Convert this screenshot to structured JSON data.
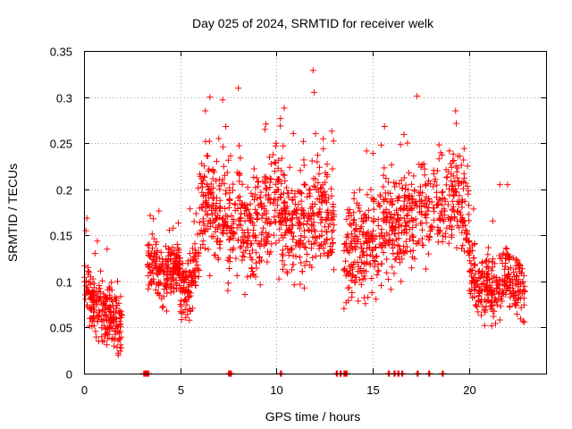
{
  "chart_data": {
    "type": "scatter",
    "title": "Day 025 of 2024, SRMTID for receiver welk",
    "xlabel": "GPS time / hours",
    "ylabel": "SRMTID / TECUs",
    "xlim": [
      0,
      24
    ],
    "ylim": [
      0,
      0.35
    ],
    "x_ticks": [
      0,
      5,
      10,
      15,
      20
    ],
    "y_ticks": [
      0,
      0.05,
      0.1,
      0.15,
      0.2,
      0.25,
      0.3,
      0.35
    ],
    "x_tick_labels": [
      "0",
      "5",
      "10",
      "15",
      "20"
    ],
    "y_tick_labels": [
      "0",
      "0.05",
      "0.1",
      "0.15",
      "0.2",
      "0.25",
      "0.3",
      "0.35"
    ],
    "grid": true,
    "marker": "+",
    "color": "#ff0000",
    "segments": [
      {
        "name": "segment-1",
        "x_start": 0.0,
        "x_end": 2.0,
        "n": 230,
        "trend": [
          [
            0.0,
            0.1
          ],
          [
            0.5,
            0.075
          ],
          [
            1.0,
            0.06
          ],
          [
            1.5,
            0.065
          ],
          [
            2.0,
            0.045
          ]
        ],
        "spread": 0.028
      },
      {
        "name": "segment-2",
        "x_start": 3.3,
        "x_end": 5.0,
        "n": 200,
        "trend": [
          [
            3.3,
            0.125
          ],
          [
            4.0,
            0.11
          ],
          [
            4.6,
            0.11
          ],
          [
            5.0,
            0.12
          ]
        ],
        "spread": 0.028
      },
      {
        "name": "segment-3",
        "x_start": 5.0,
        "x_end": 6.0,
        "n": 110,
        "trend": [
          [
            5.0,
            0.085
          ],
          [
            5.5,
            0.095
          ],
          [
            6.0,
            0.125
          ]
        ],
        "spread": 0.03
      },
      {
        "name": "segment-4",
        "x_start": 6.0,
        "x_end": 13.0,
        "n": 720,
        "trend": [
          [
            6.0,
            0.19
          ],
          [
            7.0,
            0.17
          ],
          [
            8.0,
            0.165
          ],
          [
            9.0,
            0.155
          ],
          [
            10.0,
            0.18
          ],
          [
            11.0,
            0.155
          ],
          [
            12.0,
            0.18
          ],
          [
            13.0,
            0.16
          ]
        ],
        "spread": 0.05
      },
      {
        "name": "segment-5",
        "x_start": 13.5,
        "x_end": 20.0,
        "n": 620,
        "trend": [
          [
            13.5,
            0.13
          ],
          [
            14.5,
            0.14
          ],
          [
            15.5,
            0.155
          ],
          [
            16.5,
            0.16
          ],
          [
            17.5,
            0.175
          ],
          [
            18.5,
            0.175
          ],
          [
            19.5,
            0.19
          ],
          [
            20.0,
            0.16
          ]
        ],
        "spread": 0.045
      },
      {
        "name": "segment-6",
        "x_start": 20.0,
        "x_end": 22.9,
        "n": 300,
        "trend": [
          [
            20.0,
            0.12
          ],
          [
            20.7,
            0.095
          ],
          [
            21.2,
            0.085
          ],
          [
            22.0,
            0.11
          ],
          [
            22.9,
            0.09
          ]
        ],
        "spread": 0.03
      }
    ],
    "peaks": [
      {
        "x": 6.3,
        "y": 0.285
      },
      {
        "x": 7.2,
        "y": 0.297
      },
      {
        "x": 9.4,
        "y": 0.265
      },
      {
        "x": 10.4,
        "y": 0.288
      },
      {
        "x": 11.9,
        "y": 0.329
      },
      {
        "x": 11.95,
        "y": 0.305
      },
      {
        "x": 17.3,
        "y": 0.301
      },
      {
        "x": 19.3,
        "y": 0.285
      },
      {
        "x": 7.0,
        "y": 0.255
      },
      {
        "x": 16.8,
        "y": 0.25
      },
      {
        "x": 21.6,
        "y": 0.205
      },
      {
        "x": 22.0,
        "y": 0.205
      },
      {
        "x": 0.1,
        "y": 0.155
      },
      {
        "x": 1.2,
        "y": 0.135
      }
    ],
    "zero_points_x": [
      3.1,
      3.2,
      3.3,
      7.5,
      7.6,
      10.2,
      13.1,
      13.3,
      13.5,
      13.6,
      15.8,
      16.1,
      16.3,
      16.5,
      17.3,
      17.9,
      18.6
    ]
  }
}
